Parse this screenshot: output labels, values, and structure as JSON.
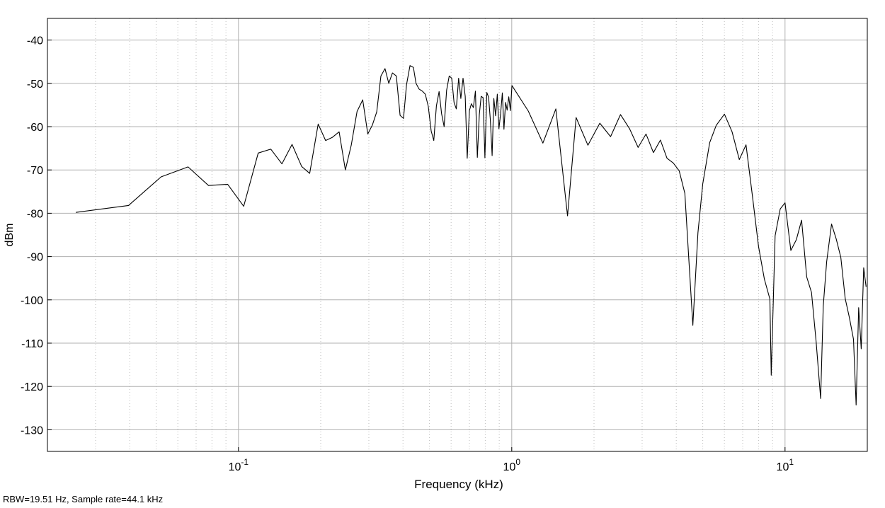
{
  "chart_data": {
    "type": "line",
    "xscale": "log",
    "xlabel": "Frequency (kHz)",
    "ylabel": "dBm",
    "xlim": [
      0.02,
      20
    ],
    "ylim": [
      -135,
      -35
    ],
    "yticks": [
      -40,
      -50,
      -60,
      -70,
      -80,
      -90,
      -100,
      -110,
      -120,
      -130
    ],
    "xticks_major": [
      {
        "value": 0.1,
        "base": "10",
        "exp": "-1"
      },
      {
        "value": 1,
        "base": "10",
        "exp": "0"
      },
      {
        "value": 10,
        "base": "10",
        "exp": "1"
      }
    ],
    "grid": true,
    "line_color": "#000000",
    "series": [
      {
        "x": [
          0.0254,
          0.0396,
          0.0521,
          0.0654,
          0.0777,
          0.0913,
          0.1045,
          0.1181,
          0.1313,
          0.1442,
          0.1571,
          0.1703,
          0.1822,
          0.1957,
          0.2084,
          0.2203,
          0.2335,
          0.2462,
          0.2587,
          0.2716,
          0.2849,
          0.2974,
          0.3091,
          0.3205,
          0.3321,
          0.3438,
          0.3548,
          0.3659,
          0.3782,
          0.3903,
          0.4017,
          0.4121,
          0.4244,
          0.4367,
          0.4464,
          0.4576,
          0.4708,
          0.4827,
          0.4948,
          0.5072,
          0.5185,
          0.5301,
          0.5423,
          0.5538,
          0.5656,
          0.5778,
          0.5904,
          0.6031,
          0.6148,
          0.6269,
          0.6391,
          0.6513,
          0.6633,
          0.6757,
          0.6871,
          0.6998,
          0.7119,
          0.7236,
          0.7362,
          0.7484,
          0.7607,
          0.7728,
          0.7853,
          0.7975,
          0.8104,
          0.8226,
          0.8349,
          0.8477,
          0.8597,
          0.8728,
          0.8852,
          0.8979,
          0.9108,
          0.9235,
          0.9366,
          0.9494,
          0.9621,
          0.9753,
          0.9885,
          1.0017,
          1.15,
          1.3,
          1.45,
          1.6,
          1.72,
          1.9,
          2.1,
          2.3,
          2.5,
          2.7,
          2.9,
          3.1,
          3.3,
          3.5,
          3.7,
          3.9,
          4.1,
          4.3,
          4.45,
          4.6,
          4.8,
          5.0,
          5.3,
          5.6,
          6.0,
          6.4,
          6.8,
          7.2,
          7.6,
          8.0,
          8.4,
          8.8,
          8.9,
          9.2,
          9.6,
          10.0,
          10.5,
          11.0,
          11.5,
          12.0,
          12.5,
          13.0,
          13.5,
          13.8,
          14.2,
          14.8,
          15.4,
          16.0,
          16.6,
          17.2,
          17.8,
          18.2,
          18.6,
          19.0,
          19.4,
          19.8
        ],
        "y": [
          -79.8,
          -78.2,
          -71.6,
          -69.3,
          -73.6,
          -73.3,
          -78.4,
          -66.1,
          -65.2,
          -68.6,
          -64.1,
          -69.2,
          -70.8,
          -59.4,
          -63.2,
          -62.5,
          -61.2,
          -70.0,
          -64.3,
          -56.5,
          -53.8,
          -61.7,
          -59.6,
          -56.6,
          -48.3,
          -46.6,
          -50.0,
          -47.6,
          -48.3,
          -57.4,
          -58.1,
          -50.3,
          -45.9,
          -46.3,
          -50.0,
          -51.3,
          -51.8,
          -52.5,
          -55.3,
          -61.0,
          -63.2,
          -55.2,
          -51.9,
          -57.0,
          -60.0,
          -51.6,
          -48.3,
          -48.8,
          -54.4,
          -55.9,
          -48.8,
          -53.5,
          -48.8,
          -53.0,
          -67.3,
          -56.3,
          -54.7,
          -55.6,
          -51.8,
          -67.1,
          -57.2,
          -53.0,
          -53.3,
          -67.2,
          -52.1,
          -53.2,
          -58.5,
          -66.7,
          -53.5,
          -57.5,
          -52.5,
          -60.5,
          -57.0,
          -52.2,
          -60.6,
          -54.4,
          -56.2,
          -53.1,
          -56.3,
          -50.5,
          -56.4,
          -63.8,
          -55.9,
          -80.6,
          -57.9,
          -64.3,
          -59.2,
          -62.3,
          -57.2,
          -60.5,
          -64.8,
          -61.7,
          -66.0,
          -63.1,
          -67.3,
          -68.4,
          -70.2,
          -75.4,
          -91.1,
          -105.9,
          -84.5,
          -73.2,
          -63.7,
          -59.7,
          -57.1,
          -61.2,
          -67.6,
          -64.2,
          -76.1,
          -87.7,
          -95.2,
          -99.8,
          -117.4,
          -85.2,
          -79.0,
          -77.6,
          -88.6,
          -86.1,
          -81.6,
          -94.7,
          -98.3,
          -109.8,
          -122.8,
          -101.4,
          -91.2,
          -82.5,
          -86.0,
          -90.2,
          -99.7,
          -104.1,
          -109.1,
          -124.3,
          -101.8,
          -111.3,
          -92.6,
          -97.0
        ]
      }
    ]
  },
  "footnote": "RBW=19.51 Hz, Sample rate=44.1 kHz"
}
